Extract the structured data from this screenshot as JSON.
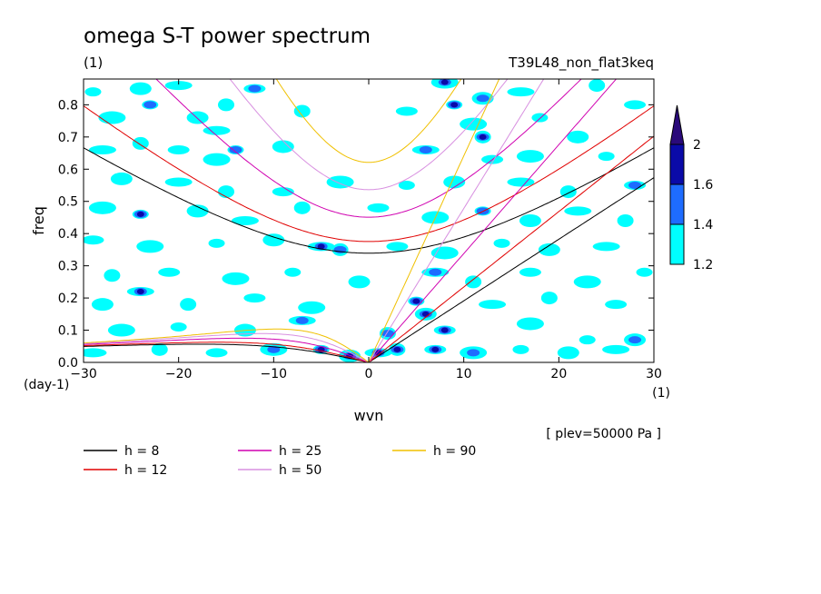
{
  "figure": {
    "title": "omega S-T power spectrum",
    "title_unit": "(1)",
    "experiment": "T39L48_non_flat3keq",
    "level_note": "[ plev=50000 Pa ]"
  },
  "chart_data": {
    "type": "heatmap",
    "xlabel": "wvn",
    "ylabel": "freq",
    "x_unit": "(1)",
    "y_unit": "(day-1)",
    "xlim": [
      -30,
      30
    ],
    "ylim": [
      0.0,
      0.88
    ],
    "xticks": [
      -30,
      -20,
      -10,
      0,
      10,
      20,
      30
    ],
    "xtick_labels": [
      "−30",
      "−20",
      "−10",
      "0",
      "10",
      "20",
      "30"
    ],
    "yticks": [
      0.0,
      0.1,
      0.2,
      0.3,
      0.4,
      0.5,
      0.6,
      0.7,
      0.8
    ],
    "ytick_labels": [
      "0.0",
      "0.1",
      "0.2",
      "0.3",
      "0.4",
      "0.5",
      "0.6",
      "0.7",
      "0.8"
    ],
    "colorbar": {
      "levels": [
        1.2,
        1.4,
        1.6,
        2
      ],
      "level_labels": [
        "1.2",
        "1.4",
        "1.6",
        "2"
      ],
      "colors": [
        "#00ffff",
        "#1e6cff",
        "#0a0aa8",
        "#2a0a7a"
      ]
    },
    "shaded_cells": [
      {
        "x": -29,
        "y": 0.84,
        "v": 1.3
      },
      {
        "x": -24,
        "y": 0.85,
        "v": 1.3
      },
      {
        "x": -20,
        "y": 0.86,
        "v": 1.3
      },
      {
        "x": -15,
        "y": 0.8,
        "v": 1.3
      },
      {
        "x": -12,
        "y": 0.85,
        "v": 1.4
      },
      {
        "x": 8,
        "y": 0.87,
        "v": 1.7
      },
      {
        "x": 9,
        "y": 0.8,
        "v": 1.6
      },
      {
        "x": 12,
        "y": 0.82,
        "v": 1.5
      },
      {
        "x": 16,
        "y": 0.84,
        "v": 1.3
      },
      {
        "x": 24,
        "y": 0.86,
        "v": 1.3
      },
      {
        "x": 28,
        "y": 0.8,
        "v": 1.3
      },
      {
        "x": -27,
        "y": 0.76,
        "v": 1.3
      },
      {
        "x": -23,
        "y": 0.8,
        "v": 1.5
      },
      {
        "x": -18,
        "y": 0.76,
        "v": 1.3
      },
      {
        "x": -16,
        "y": 0.72,
        "v": 1.3
      },
      {
        "x": -7,
        "y": 0.78,
        "v": 1.3
      },
      {
        "x": 4,
        "y": 0.78,
        "v": 1.3
      },
      {
        "x": 11,
        "y": 0.74,
        "v": 1.3
      },
      {
        "x": 18,
        "y": 0.76,
        "v": 1.3
      },
      {
        "x": 22,
        "y": 0.7,
        "v": 1.3
      },
      {
        "x": -28,
        "y": 0.66,
        "v": 1.3
      },
      {
        "x": -24,
        "y": 0.68,
        "v": 1.3
      },
      {
        "x": -20,
        "y": 0.66,
        "v": 1.3
      },
      {
        "x": -16,
        "y": 0.63,
        "v": 1.3
      },
      {
        "x": -14,
        "y": 0.66,
        "v": 1.4
      },
      {
        "x": -9,
        "y": 0.67,
        "v": 1.3
      },
      {
        "x": 6,
        "y": 0.66,
        "v": 1.4
      },
      {
        "x": 12,
        "y": 0.7,
        "v": 1.6
      },
      {
        "x": 13,
        "y": 0.63,
        "v": 1.3
      },
      {
        "x": 17,
        "y": 0.64,
        "v": 1.3
      },
      {
        "x": 25,
        "y": 0.64,
        "v": 1.3
      },
      {
        "x": -26,
        "y": 0.57,
        "v": 1.3
      },
      {
        "x": -20,
        "y": 0.56,
        "v": 1.3
      },
      {
        "x": -15,
        "y": 0.53,
        "v": 1.3
      },
      {
        "x": -9,
        "y": 0.53,
        "v": 1.3
      },
      {
        "x": -3,
        "y": 0.56,
        "v": 1.3
      },
      {
        "x": 4,
        "y": 0.55,
        "v": 1.3
      },
      {
        "x": 9,
        "y": 0.56,
        "v": 1.3
      },
      {
        "x": 16,
        "y": 0.56,
        "v": 1.3
      },
      {
        "x": 21,
        "y": 0.53,
        "v": 1.3
      },
      {
        "x": 28,
        "y": 0.55,
        "v": 1.4
      },
      {
        "x": -28,
        "y": 0.48,
        "v": 1.3
      },
      {
        "x": -24,
        "y": 0.46,
        "v": 1.6
      },
      {
        "x": -18,
        "y": 0.47,
        "v": 1.3
      },
      {
        "x": -13,
        "y": 0.44,
        "v": 1.3
      },
      {
        "x": -7,
        "y": 0.48,
        "v": 1.3
      },
      {
        "x": 1,
        "y": 0.48,
        "v": 1.3
      },
      {
        "x": 7,
        "y": 0.45,
        "v": 1.3
      },
      {
        "x": 12,
        "y": 0.47,
        "v": 1.4
      },
      {
        "x": 17,
        "y": 0.44,
        "v": 1.3
      },
      {
        "x": 22,
        "y": 0.47,
        "v": 1.3
      },
      {
        "x": 27,
        "y": 0.44,
        "v": 1.3
      },
      {
        "x": -29,
        "y": 0.38,
        "v": 1.3
      },
      {
        "x": -23,
        "y": 0.36,
        "v": 1.3
      },
      {
        "x": -16,
        "y": 0.37,
        "v": 1.3
      },
      {
        "x": -10,
        "y": 0.38,
        "v": 1.3
      },
      {
        "x": -5,
        "y": 0.36,
        "v": 1.9
      },
      {
        "x": -3,
        "y": 0.35,
        "v": 1.5
      },
      {
        "x": 3,
        "y": 0.36,
        "v": 1.3
      },
      {
        "x": 8,
        "y": 0.34,
        "v": 1.3
      },
      {
        "x": 14,
        "y": 0.37,
        "v": 1.3
      },
      {
        "x": 19,
        "y": 0.35,
        "v": 1.3
      },
      {
        "x": 25,
        "y": 0.36,
        "v": 1.3
      },
      {
        "x": -27,
        "y": 0.27,
        "v": 1.3
      },
      {
        "x": -21,
        "y": 0.28,
        "v": 1.3
      },
      {
        "x": -14,
        "y": 0.26,
        "v": 1.3
      },
      {
        "x": -8,
        "y": 0.28,
        "v": 1.3
      },
      {
        "x": -1,
        "y": 0.25,
        "v": 1.3
      },
      {
        "x": 7,
        "y": 0.28,
        "v": 1.5
      },
      {
        "x": 11,
        "y": 0.25,
        "v": 1.3
      },
      {
        "x": 17,
        "y": 0.28,
        "v": 1.3
      },
      {
        "x": 23,
        "y": 0.25,
        "v": 1.3
      },
      {
        "x": 29,
        "y": 0.28,
        "v": 1.3
      },
      {
        "x": -28,
        "y": 0.18,
        "v": 1.3
      },
      {
        "x": -24,
        "y": 0.22,
        "v": 1.6
      },
      {
        "x": -19,
        "y": 0.18,
        "v": 1.3
      },
      {
        "x": -12,
        "y": 0.2,
        "v": 1.3
      },
      {
        "x": -6,
        "y": 0.17,
        "v": 1.3
      },
      {
        "x": 5,
        "y": 0.19,
        "v": 1.6
      },
      {
        "x": 6,
        "y": 0.15,
        "v": 1.8
      },
      {
        "x": 13,
        "y": 0.18,
        "v": 1.3
      },
      {
        "x": 19,
        "y": 0.2,
        "v": 1.3
      },
      {
        "x": 26,
        "y": 0.18,
        "v": 1.3
      },
      {
        "x": -26,
        "y": 0.1,
        "v": 1.3
      },
      {
        "x": -20,
        "y": 0.11,
        "v": 1.3
      },
      {
        "x": -13,
        "y": 0.1,
        "v": 1.3
      },
      {
        "x": -7,
        "y": 0.13,
        "v": 1.4
      },
      {
        "x": 2,
        "y": 0.09,
        "v": 1.4
      },
      {
        "x": 8,
        "y": 0.1,
        "v": 1.6
      },
      {
        "x": 17,
        "y": 0.12,
        "v": 1.3
      },
      {
        "x": 23,
        "y": 0.07,
        "v": 1.3
      },
      {
        "x": 28,
        "y": 0.07,
        "v": 1.5
      },
      {
        "x": -29,
        "y": 0.03,
        "v": 1.3
      },
      {
        "x": -22,
        "y": 0.04,
        "v": 1.3
      },
      {
        "x": -16,
        "y": 0.03,
        "v": 1.3
      },
      {
        "x": -10,
        "y": 0.04,
        "v": 1.4
      },
      {
        "x": -5,
        "y": 0.04,
        "v": 1.7
      },
      {
        "x": -2,
        "y": 0.02,
        "v": 1.9
      },
      {
        "x": 1,
        "y": 0.03,
        "v": 1.9
      },
      {
        "x": 3,
        "y": 0.04,
        "v": 1.8
      },
      {
        "x": 7,
        "y": 0.04,
        "v": 1.7
      },
      {
        "x": 11,
        "y": 0.03,
        "v": 1.4
      },
      {
        "x": 16,
        "y": 0.04,
        "v": 1.3
      },
      {
        "x": 21,
        "y": 0.03,
        "v": 1.3
      },
      {
        "x": 26,
        "y": 0.04,
        "v": 1.3
      }
    ],
    "dispersion_curves": [
      {
        "name": "h =  8",
        "h": 8,
        "color": "#000000"
      },
      {
        "name": "h = 12",
        "h": 12,
        "color": "#e00000"
      },
      {
        "name": "h = 25",
        "h": 25,
        "color": "#d000b0"
      },
      {
        "name": "h = 50",
        "h": 50,
        "color": "#d890e0"
      },
      {
        "name": "h = 90",
        "h": 90,
        "color": "#f0c000"
      }
    ],
    "legend_position": "below"
  }
}
